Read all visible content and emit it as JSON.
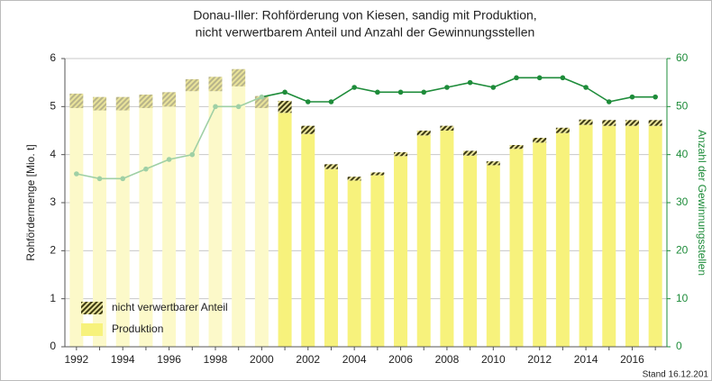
{
  "chart_data": {
    "type": "bar",
    "title": "Donau-Iller: Rohförderung von Kiesen, sandig mit Produktion,",
    "subtitle": "nicht verwertbarem Anteil und Anzahl der Gewinnungsstellen",
    "ylabel": "Rohfördermenge [Mio. t]",
    "y2label": "Anzahl der Gewinnungsstellen",
    "footnote": "Stand 16.12.201",
    "categories": [
      "1992",
      null,
      "1994",
      null,
      "1996",
      null,
      "1998",
      null,
      "2000",
      null,
      "2002",
      null,
      "2004",
      null,
      "2006",
      null,
      "2008",
      null,
      "2010",
      null,
      "2012",
      null,
      "2014",
      null,
      "2016",
      null
    ],
    "ylim": [
      0,
      6
    ],
    "yticks": [
      0,
      1,
      2,
      3,
      4,
      5,
      6
    ],
    "y2lim": [
      0,
      60
    ],
    "y2ticks": [
      0,
      10,
      20,
      30,
      40,
      50,
      60
    ],
    "y2color": "#1e8c3a",
    "grid": true,
    "stacked": true,
    "legend": "lower left",
    "series": [
      {
        "name": "Produktion",
        "type": "bar",
        "color": "#f7f27c",
        "colors": [
          "#fcf9c9",
          "#fcf9c9",
          "#fcf9c9",
          "#fcf9c9",
          "#fcf9c9",
          "#fcf9c9",
          "#fcf9c9",
          "#fcf9c9",
          "#fcf9c9",
          "#f7f27c",
          "#f7f27c",
          "#f7f27c",
          "#f7f27c",
          "#f7f27c",
          "#f7f27c",
          "#f7f27c",
          "#f7f27c",
          "#f7f27c",
          "#f7f27c",
          "#f7f27c",
          "#f7f27c",
          "#f7f27c",
          "#f7f27c",
          "#f7f27c",
          "#f7f27c",
          "#f7f27c"
        ],
        "values": [
          4.97,
          4.92,
          4.92,
          4.97,
          5.0,
          5.32,
          5.32,
          5.42,
          4.97,
          4.87,
          4.43,
          3.7,
          3.46,
          3.57,
          3.97,
          4.4,
          4.5,
          3.98,
          3.78,
          4.12,
          4.25,
          4.45,
          4.62,
          4.6,
          4.6,
          4.6
        ]
      },
      {
        "name": "nicht verwertbarer Anteil",
        "type": "bar",
        "hatch": true,
        "color": "#3d3a14",
        "colors": [
          "#b8b48a",
          "#b8b48a",
          "#b8b48a",
          "#b8b48a",
          "#b8b48a",
          "#b8b48a",
          "#b8b48a",
          "#b8b48a",
          "#b8b48a",
          "#3d3a14",
          "#3d3a14",
          "#3d3a14",
          "#3d3a14",
          "#3d3a14",
          "#3d3a14",
          "#3d3a14",
          "#3d3a14",
          "#3d3a14",
          "#3d3a14",
          "#3d3a14",
          "#3d3a14",
          "#3d3a14",
          "#3d3a14",
          "#3d3a14",
          "#3d3a14",
          "#3d3a14"
        ],
        "values": [
          0.3,
          0.28,
          0.28,
          0.28,
          0.3,
          0.25,
          0.3,
          0.36,
          0.25,
          0.25,
          0.17,
          0.1,
          0.08,
          0.06,
          0.08,
          0.1,
          0.1,
          0.1,
          0.08,
          0.08,
          0.1,
          0.11,
          0.11,
          0.12,
          0.12,
          0.12
        ]
      },
      {
        "type": "line",
        "axis": "y2",
        "color": "#1e8c3a",
        "colors": [
          "#9fd0a5",
          "#9fd0a5",
          "#9fd0a5",
          "#9fd0a5",
          "#9fd0a5",
          "#9fd0a5",
          "#9fd0a5",
          "#9fd0a5",
          "#9fd0a5",
          "#1e8c3a",
          "#1e8c3a",
          "#1e8c3a",
          "#1e8c3a",
          "#1e8c3a",
          "#1e8c3a",
          "#1e8c3a",
          "#1e8c3a",
          "#1e8c3a",
          "#1e8c3a",
          "#1e8c3a",
          "#1e8c3a",
          "#1e8c3a",
          "#1e8c3a",
          "#1e8c3a",
          "#1e8c3a",
          "#1e8c3a"
        ],
        "values": [
          36,
          35,
          35,
          37,
          39,
          40,
          50,
          50,
          52,
          53,
          51,
          51,
          54,
          53,
          53,
          53,
          54,
          55,
          54,
          56,
          56,
          56,
          54,
          51,
          52,
          52
        ]
      }
    ]
  }
}
